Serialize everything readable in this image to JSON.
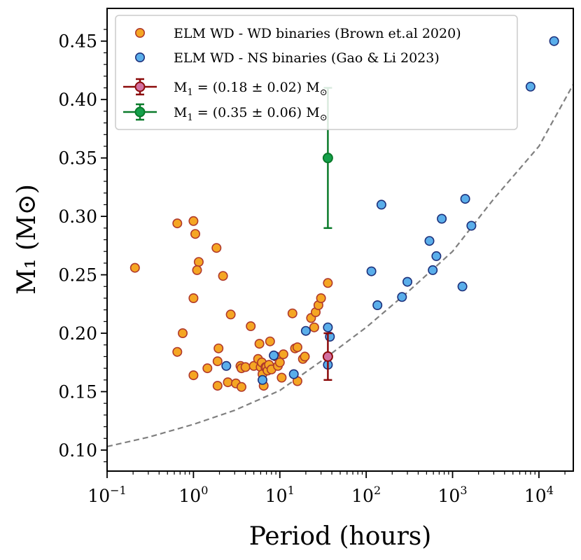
{
  "chart_data": {
    "type": "scatter",
    "xscale": "log",
    "xlabel": "Period (hours)",
    "ylabel": "M₁ (M⊙)",
    "xlim": [
      0.1,
      25000
    ],
    "ylim": [
      0.082,
      0.478
    ],
    "x_ticks": [
      {
        "value": 0.1,
        "base": "10",
        "exp": "−1"
      },
      {
        "value": 1,
        "base": "10",
        "exp": "0"
      },
      {
        "value": 10,
        "base": "10",
        "exp": "1"
      },
      {
        "value": 100,
        "base": "10",
        "exp": "2"
      },
      {
        "value": 1000,
        "base": "10",
        "exp": "3"
      },
      {
        "value": 10000,
        "base": "10",
        "exp": "4"
      }
    ],
    "y_ticks": [
      {
        "value": 0.1,
        "label": "0.10"
      },
      {
        "value": 0.15,
        "label": "0.15"
      },
      {
        "value": 0.2,
        "label": "0.20"
      },
      {
        "value": 0.25,
        "label": "0.25"
      },
      {
        "value": 0.3,
        "label": "0.30"
      },
      {
        "value": 0.35,
        "label": "0.35"
      },
      {
        "value": 0.4,
        "label": "0.40"
      },
      {
        "value": 0.45,
        "label": "0.45"
      }
    ],
    "series": [
      {
        "name": "ELM WD - WD binaries (Brown et.al 2020)",
        "marker_fill": "#f5a623",
        "marker_edge": "#b0392b",
        "points": [
          [
            0.21,
            0.256
          ],
          [
            0.65,
            0.294
          ],
          [
            0.65,
            0.184
          ],
          [
            0.75,
            0.2
          ],
          [
            1.0,
            0.296
          ],
          [
            1.05,
            0.285
          ],
          [
            1.15,
            0.261
          ],
          [
            1.1,
            0.254
          ],
          [
            1.0,
            0.23
          ],
          [
            1.0,
            0.164
          ],
          [
            1.45,
            0.17
          ],
          [
            1.85,
            0.273
          ],
          [
            1.95,
            0.187
          ],
          [
            1.9,
            0.176
          ],
          [
            1.9,
            0.155
          ],
          [
            2.2,
            0.249
          ],
          [
            2.5,
            0.158
          ],
          [
            2.7,
            0.216
          ],
          [
            3.1,
            0.157
          ],
          [
            3.5,
            0.172
          ],
          [
            3.6,
            0.17
          ],
          [
            3.6,
            0.154
          ],
          [
            4.0,
            0.171
          ],
          [
            4.6,
            0.206
          ],
          [
            5.0,
            0.172
          ],
          [
            5.6,
            0.178
          ],
          [
            5.8,
            0.191
          ],
          [
            6.0,
            0.171
          ],
          [
            6.2,
            0.175
          ],
          [
            6.3,
            0.165
          ],
          [
            6.5,
            0.155
          ],
          [
            6.8,
            0.171
          ],
          [
            7.0,
            0.171
          ],
          [
            7.2,
            0.168
          ],
          [
            7.5,
            0.173
          ],
          [
            7.7,
            0.193
          ],
          [
            8.0,
            0.169
          ],
          [
            9.0,
            0.18
          ],
          [
            9.5,
            0.172
          ],
          [
            10.0,
            0.175
          ],
          [
            10.5,
            0.162
          ],
          [
            11.0,
            0.182
          ],
          [
            14.0,
            0.217
          ],
          [
            15.0,
            0.187
          ],
          [
            16.0,
            0.188
          ],
          [
            16.0,
            0.159
          ],
          [
            18.5,
            0.178
          ],
          [
            19.5,
            0.18
          ],
          [
            23.0,
            0.213
          ],
          [
            25.0,
            0.205
          ],
          [
            26.0,
            0.218
          ],
          [
            28.0,
            0.224
          ],
          [
            30.0,
            0.23
          ],
          [
            36.0,
            0.243
          ]
        ]
      },
      {
        "name": "ELM WD - NS binaries (Gao & Li 2023)",
        "marker_fill": "#5aaeea",
        "marker_edge": "#1c2f7a",
        "points": [
          [
            2.4,
            0.172
          ],
          [
            6.3,
            0.16
          ],
          [
            8.5,
            0.181
          ],
          [
            14.5,
            0.165
          ],
          [
            20.0,
            0.202
          ],
          [
            36.0,
            0.205
          ],
          [
            38.0,
            0.197
          ],
          [
            36.0,
            0.173
          ],
          [
            115,
            0.253
          ],
          [
            135,
            0.224
          ],
          [
            150,
            0.31
          ],
          [
            260,
            0.231
          ],
          [
            300,
            0.244
          ],
          [
            540,
            0.279
          ],
          [
            590,
            0.254
          ],
          [
            650,
            0.266
          ],
          [
            750,
            0.298
          ],
          [
            1300,
            0.24
          ],
          [
            1400,
            0.315
          ],
          [
            1650,
            0.292
          ],
          [
            8000,
            0.411
          ],
          [
            15000,
            0.45
          ]
        ]
      }
    ],
    "errorbar_points": [
      {
        "label_base": "M",
        "label_sub": "1",
        "label_mid": " = (0.18 ± 0.02) M",
        "label_sun": "⊙",
        "x": 36,
        "y": 0.18,
        "yerr": 0.02,
        "color": "#8b0a0a",
        "fill": "#d26fa0"
      },
      {
        "label_base": "M",
        "label_sub": "1",
        "label_mid": " = (0.35 ± 0.06) M",
        "label_sun": "⊙",
        "x": 36,
        "y": 0.35,
        "yerr": 0.06,
        "color": "#0a7a2a",
        "fill": "#14a04a"
      }
    ],
    "curve": {
      "style": "dashed",
      "color": "#808080",
      "points": [
        [
          0.1,
          0.103
        ],
        [
          0.3,
          0.111
        ],
        [
          1,
          0.122
        ],
        [
          3,
          0.134
        ],
        [
          10,
          0.151
        ],
        [
          30,
          0.176
        ],
        [
          100,
          0.205
        ],
        [
          300,
          0.235
        ],
        [
          1000,
          0.27
        ],
        [
          3000,
          0.315
        ],
        [
          10000,
          0.36
        ],
        [
          25000,
          0.413
        ]
      ]
    },
    "legend_position": "top-left"
  }
}
